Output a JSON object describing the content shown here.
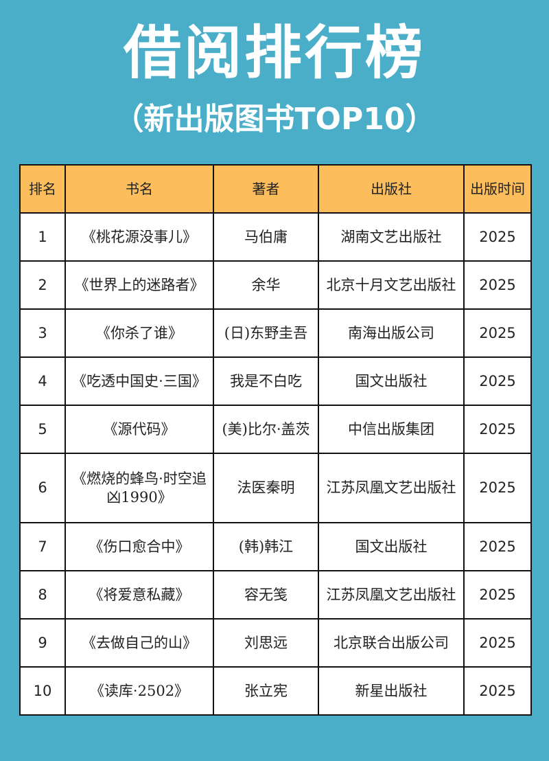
{
  "title": "借阅排行榜",
  "subtitle": "（新出版图书TOP10）",
  "colors": {
    "background": "#4aaec8",
    "header_bg": "#fcbd5c",
    "text_light": "#ffffff",
    "border": "#111111"
  },
  "table": {
    "headers": {
      "rank": "排名",
      "book": "书名",
      "author": "著者",
      "publisher": "出版社",
      "time": "出版时间"
    },
    "rows": [
      {
        "rank": "1",
        "book": "《桃花源没事儿》",
        "author": "马伯庸",
        "publisher": "湖南文艺出版社",
        "year": "2025"
      },
      {
        "rank": "2",
        "book": "《世界上的迷路者》",
        "author": "余华",
        "publisher": "北京十月文艺出版社",
        "year": "2025"
      },
      {
        "rank": "3",
        "book": "《你杀了谁》",
        "author": "(日)东野圭吾",
        "publisher": "南海出版公司",
        "year": "2025"
      },
      {
        "rank": "4",
        "book": "《吃透中国史·三国》",
        "author": "我是不白吃",
        "publisher": "国文出版社",
        "year": "2025"
      },
      {
        "rank": "5",
        "book": "《源代码》",
        "author": "(美)比尔·盖茨",
        "publisher": "中信出版集团",
        "year": "2025"
      },
      {
        "rank": "6",
        "book": "《燃烧的蜂鸟·时空追凶1990》",
        "author": "法医秦明",
        "publisher": "江苏凤凰文艺出版社",
        "year": "2025"
      },
      {
        "rank": "7",
        "book": "《伤口愈合中》",
        "author": "(韩)韩江",
        "publisher": "国文出版社",
        "year": "2025"
      },
      {
        "rank": "8",
        "book": "《将爱意私藏》",
        "author": "容无笺",
        "publisher": "江苏凤凰文艺出版社",
        "year": "2025"
      },
      {
        "rank": "9",
        "book": "《去做自己的山》",
        "author": "刘思远",
        "publisher": "北京联合出版公司",
        "year": "2025"
      },
      {
        "rank": "10",
        "book": "《读库·2502》",
        "author": "张立宪",
        "publisher": "新星出版社",
        "year": "2025"
      }
    ]
  }
}
